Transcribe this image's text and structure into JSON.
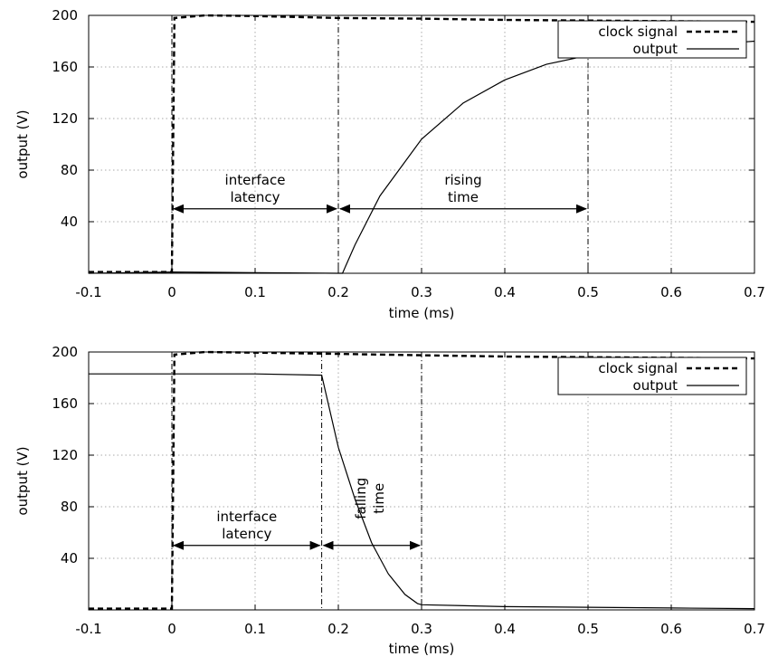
{
  "chart_data": [
    {
      "type": "line",
      "xlabel": "time (ms)",
      "ylabel": "output (V)",
      "xlim": [
        -0.1,
        0.7
      ],
      "ylim": [
        0,
        200
      ],
      "xticks": [
        "-0.1",
        "0",
        "0.1",
        "0.2",
        "0.3",
        "0.4",
        "0.5",
        "0.6",
        "0.7"
      ],
      "yticks": [
        "40",
        "80",
        "120",
        "160",
        "200"
      ],
      "grid": true,
      "legend_position": "top-right",
      "series": [
        {
          "name": "clock signal",
          "style": "dashed",
          "x": [
            -0.1,
            -0.001,
            0.0,
            0.003,
            0.04,
            0.1,
            0.2,
            0.3,
            0.4,
            0.5,
            0.6,
            0.7
          ],
          "y": [
            1,
            1,
            1,
            198,
            200,
            199.5,
            198,
            197.5,
            196.5,
            196,
            195.5,
            195
          ]
        },
        {
          "name": "output",
          "style": "solid",
          "x": [
            -0.1,
            0.0,
            0.1,
            0.2,
            0.205,
            0.22,
            0.25,
            0.3,
            0.35,
            0.4,
            0.45,
            0.5,
            0.55,
            0.6,
            0.65,
            0.69,
            0.7
          ],
          "y": [
            0,
            1,
            0.5,
            0,
            0,
            22,
            60,
            104,
            132,
            150,
            162,
            169,
            174,
            177,
            178.5,
            179.5,
            180
          ]
        }
      ],
      "annotations": [
        {
          "label_lines": [
            "interface",
            "latency"
          ],
          "from": 0.0,
          "to": 0.2,
          "y": 50
        },
        {
          "label_lines": [
            "rising",
            "time"
          ],
          "from": 0.2,
          "to": 0.5,
          "y": 50
        }
      ],
      "markers_x": [
        0.0,
        0.2,
        0.5
      ]
    },
    {
      "type": "line",
      "xlabel": "time (ms)",
      "ylabel": "output (V)",
      "xlim": [
        -0.1,
        0.7
      ],
      "ylim": [
        0,
        200
      ],
      "xticks": [
        "-0.1",
        "0",
        "0.1",
        "0.2",
        "0.3",
        "0.4",
        "0.5",
        "0.6",
        "0.7"
      ],
      "yticks": [
        "40",
        "80",
        "120",
        "160",
        "200"
      ],
      "grid": true,
      "legend_position": "top-right",
      "series": [
        {
          "name": "clock signal",
          "style": "dashed",
          "x": [
            -0.1,
            -0.001,
            0.0,
            0.003,
            0.04,
            0.1,
            0.2,
            0.3,
            0.4,
            0.5,
            0.6,
            0.7
          ],
          "y": [
            1,
            1,
            1,
            198,
            200,
            199.5,
            198.5,
            197.5,
            196.5,
            196,
            195.5,
            195
          ]
        },
        {
          "name": "output",
          "style": "solid",
          "x": [
            -0.1,
            0.0,
            0.1,
            0.18,
            0.2,
            0.22,
            0.24,
            0.26,
            0.28,
            0.295,
            0.3,
            0.4,
            0.5,
            0.6,
            0.7
          ],
          "y": [
            183,
            183,
            183,
            182,
            126,
            86,
            52,
            28,
            12,
            5,
            4,
            2.5,
            2,
            1.5,
            1
          ]
        }
      ],
      "annotations": [
        {
          "label_lines": [
            "interface",
            "latency"
          ],
          "from": 0.0,
          "to": 0.18,
          "y": 50
        },
        {
          "label_lines": [
            "falling",
            "time"
          ],
          "from": 0.18,
          "to": 0.3,
          "y": 50,
          "rotated": true
        }
      ],
      "markers_x": [
        0.0,
        0.18,
        0.3
      ]
    }
  ]
}
